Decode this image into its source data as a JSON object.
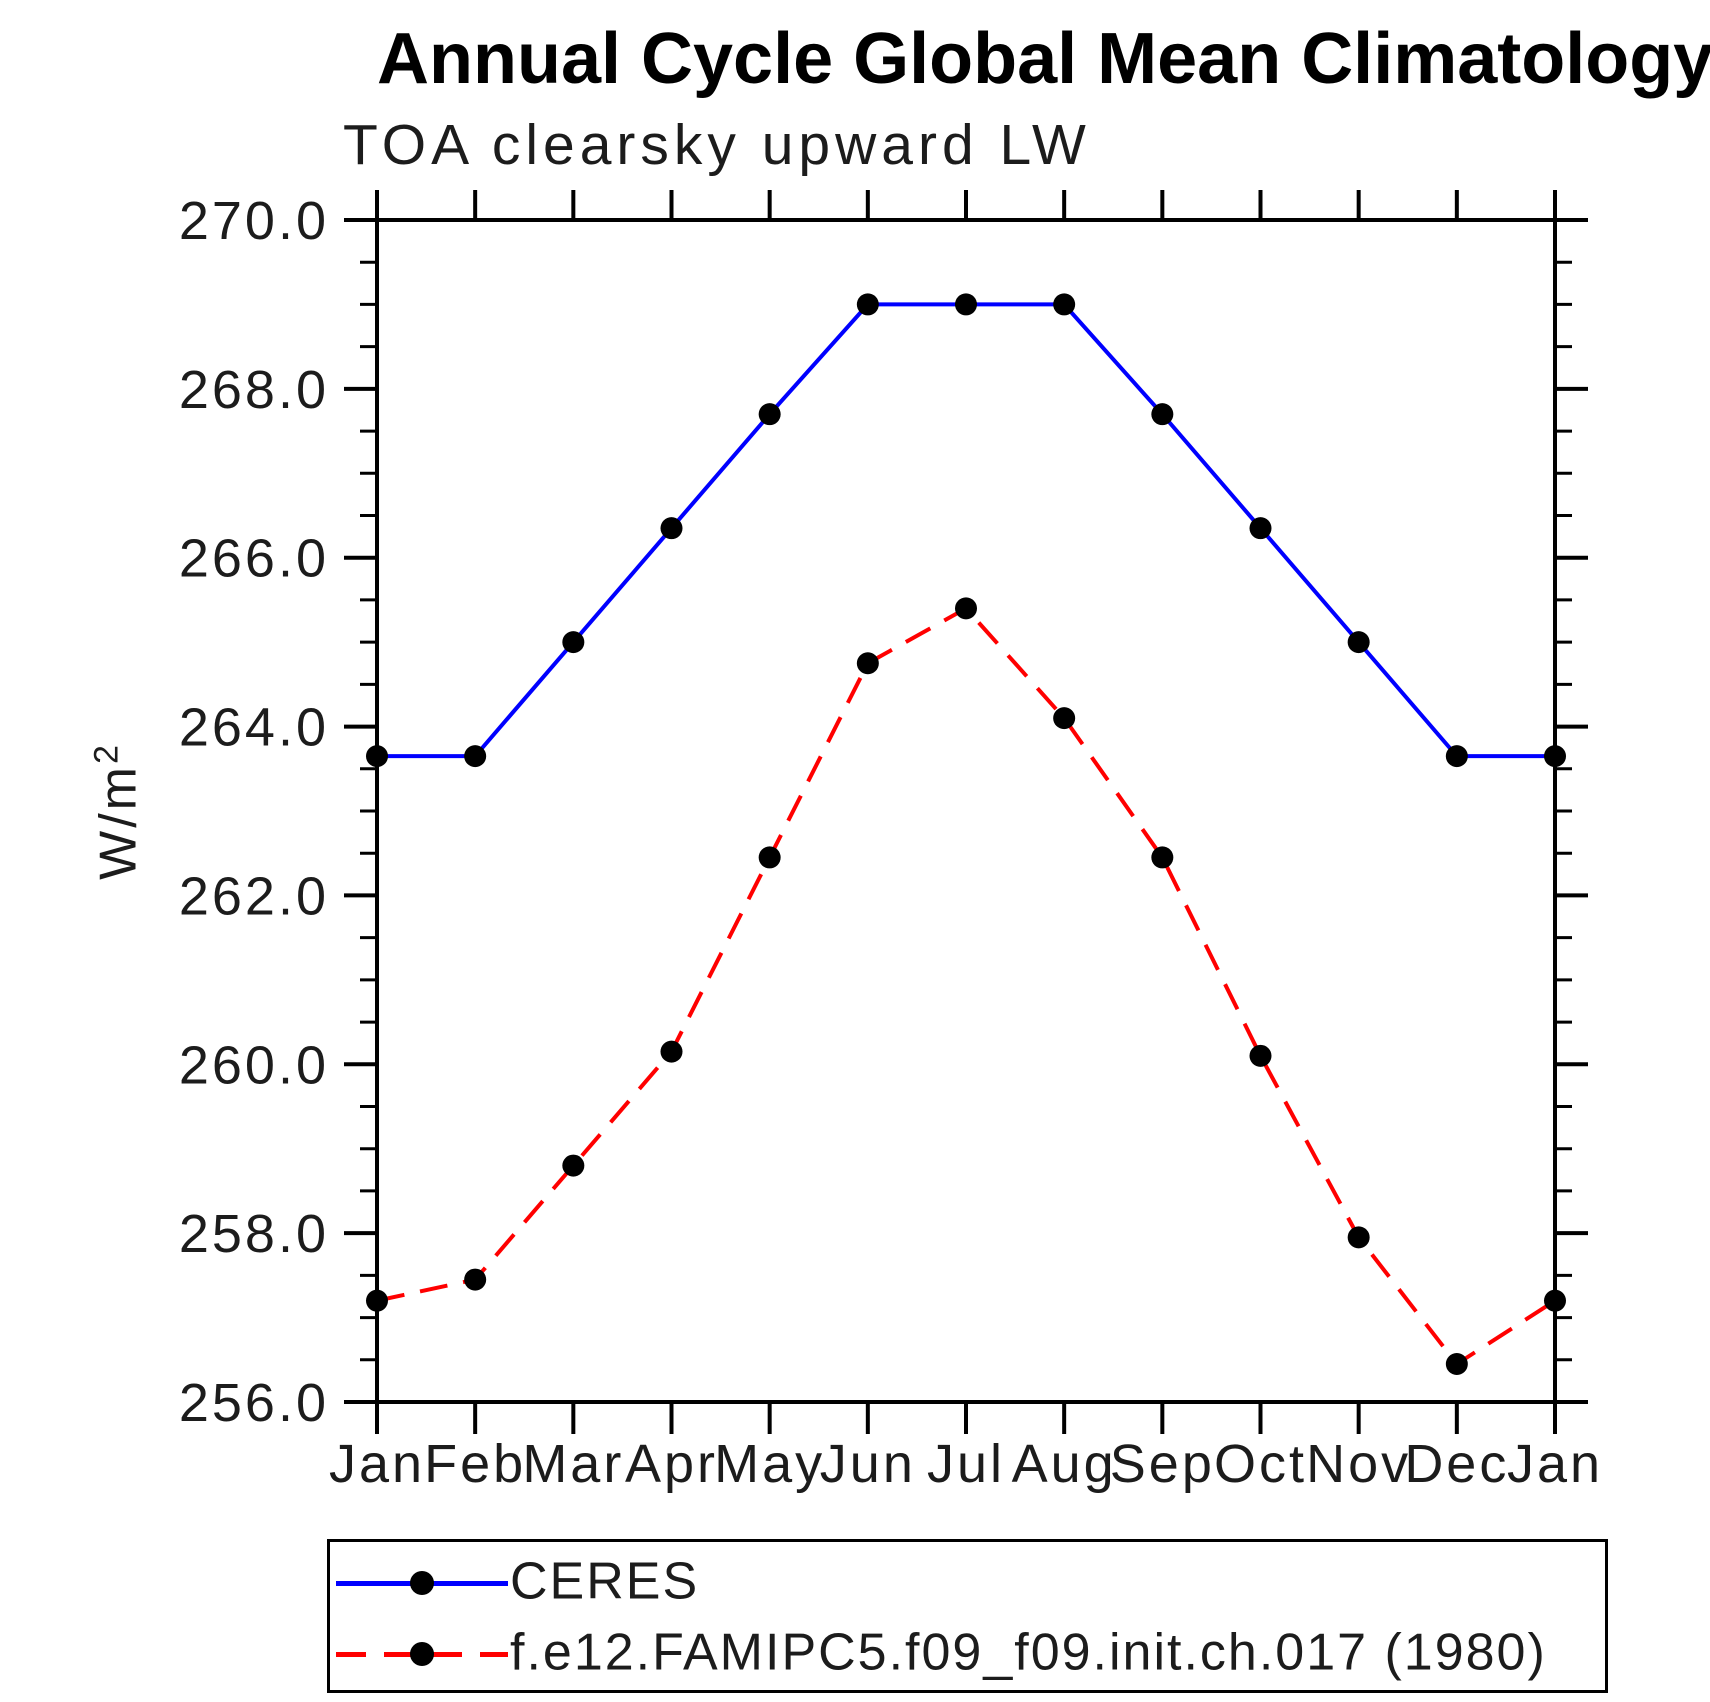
{
  "title": "Annual Cycle Global Mean Climatology",
  "subtitle": "TOA clearsky upward LW",
  "ylabel": "W/m²",
  "ylabel_base": "W/m",
  "ylabel_sup": "2",
  "colors": {
    "ceres_line": "#0000ff",
    "model_line": "#ff0000",
    "marker": "#000000",
    "axis": "#000000"
  },
  "legend": {
    "entries": [
      {
        "id": "ceres",
        "label": "CERES",
        "style": "solid"
      },
      {
        "id": "model",
        "label": "f.e12.FAMIPC5.f09_f09.init.ch.017 (1980)",
        "style": "dashed"
      }
    ]
  },
  "chart_data": {
    "type": "line",
    "x_categories": [
      "Jan",
      "Feb",
      "Mar",
      "Apr",
      "May",
      "Jun",
      "Jul",
      "Aug",
      "Sep",
      "Oct",
      "Nov",
      "Dec",
      "Jan"
    ],
    "series": [
      {
        "name": "CERES",
        "color": "#0000ff",
        "line_style": "solid",
        "marker": "circle",
        "values": [
          263.65,
          263.65,
          265.0,
          266.35,
          267.7,
          269.0,
          269.0,
          269.0,
          267.7,
          266.35,
          265.0,
          263.65,
          263.65
        ]
      },
      {
        "name": "f.e12.FAMIPC5.f09_f09.init.ch.017 (1980)",
        "color": "#ff0000",
        "line_style": "dashed",
        "marker": "circle",
        "values": [
          257.2,
          257.45,
          258.8,
          260.15,
          262.45,
          264.75,
          265.4,
          264.1,
          262.45,
          260.1,
          257.95,
          256.45,
          257.2
        ]
      }
    ],
    "ylim": [
      256.0,
      270.0
    ],
    "ytick_labels": [
      "270.0",
      "268.0",
      "266.0",
      "264.0",
      "262.0",
      "260.0",
      "258.0",
      "256.0"
    ],
    "ytick_major_step": 2.0,
    "ytick_minor_step": 0.5,
    "ylabel": "W/m²",
    "grid": false,
    "legend_position": "bottom"
  }
}
